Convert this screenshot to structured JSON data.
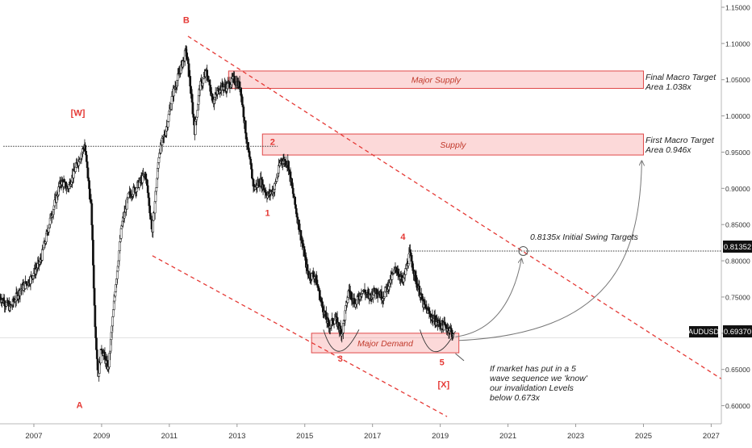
{
  "chart_data": {
    "type": "candlestick",
    "symbol": "AUDUSD",
    "last_price": "0.69370",
    "ylim": [
      0.575,
      1.16
    ],
    "xlim": [
      2006.0,
      2027.3
    ],
    "y_ticks": [
      "1.15000",
      "1.10000",
      "1.05000",
      "1.00000",
      "0.95000",
      "0.90000",
      "0.85000",
      "0.80000",
      "0.75000",
      "0.70000",
      "0.65000",
      "0.60000"
    ],
    "x_ticks": [
      "2007",
      "2009",
      "2011",
      "2013",
      "2015",
      "2017",
      "2019",
      "2021",
      "2023",
      "2025",
      "2027"
    ],
    "price_path": [
      [
        2006.0,
        0.75
      ],
      [
        2006.3,
        0.735
      ],
      [
        2006.6,
        0.76
      ],
      [
        2006.9,
        0.775
      ],
      [
        2007.2,
        0.8
      ],
      [
        2007.5,
        0.86
      ],
      [
        2007.8,
        0.91
      ],
      [
        2008.0,
        0.9
      ],
      [
        2008.25,
        0.93
      ],
      [
        2008.5,
        0.96
      ],
      [
        2008.7,
        0.87
      ],
      [
        2008.8,
        0.72
      ],
      [
        2008.9,
        0.64
      ],
      [
        2009.0,
        0.68
      ],
      [
        2009.2,
        0.65
      ],
      [
        2009.4,
        0.76
      ],
      [
        2009.6,
        0.85
      ],
      [
        2009.8,
        0.89
      ],
      [
        2010.0,
        0.9
      ],
      [
        2010.3,
        0.92
      ],
      [
        2010.5,
        0.84
      ],
      [
        2010.7,
        0.95
      ],
      [
        2010.9,
        0.98
      ],
      [
        2011.1,
        1.03
      ],
      [
        2011.3,
        1.06
      ],
      [
        2011.5,
        1.09
      ],
      [
        2011.6,
        1.05
      ],
      [
        2011.75,
        0.98
      ],
      [
        2011.9,
        1.04
      ],
      [
        2012.1,
        1.06
      ],
      [
        2012.3,
        1.02
      ],
      [
        2012.5,
        1.04
      ],
      [
        2012.7,
        1.04
      ],
      [
        2012.9,
        1.05
      ],
      [
        2013.1,
        1.04
      ],
      [
        2013.3,
        0.96
      ],
      [
        2013.5,
        0.9
      ],
      [
        2013.7,
        0.91
      ],
      [
        2013.9,
        0.89
      ],
      [
        2014.1,
        0.9
      ],
      [
        2014.3,
        0.94
      ],
      [
        2014.5,
        0.935
      ],
      [
        2014.7,
        0.88
      ],
      [
        2014.9,
        0.83
      ],
      [
        2015.1,
        0.78
      ],
      [
        2015.3,
        0.78
      ],
      [
        2015.5,
        0.74
      ],
      [
        2015.7,
        0.71
      ],
      [
        2015.9,
        0.72
      ],
      [
        2016.1,
        0.7
      ],
      [
        2016.3,
        0.76
      ],
      [
        2016.5,
        0.74
      ],
      [
        2016.7,
        0.76
      ],
      [
        2016.9,
        0.75
      ],
      [
        2017.1,
        0.76
      ],
      [
        2017.3,
        0.75
      ],
      [
        2017.5,
        0.77
      ],
      [
        2017.7,
        0.79
      ],
      [
        2017.9,
        0.77
      ],
      [
        2018.1,
        0.81
      ],
      [
        2018.3,
        0.77
      ],
      [
        2018.5,
        0.74
      ],
      [
        2018.7,
        0.725
      ],
      [
        2018.9,
        0.715
      ],
      [
        2019.1,
        0.71
      ],
      [
        2019.3,
        0.705
      ],
      [
        2019.4,
        0.694
      ]
    ],
    "zones": [
      {
        "label": "Major Supply",
        "from": 2012.75,
        "to": 2025.0,
        "low": 1.038,
        "high": 1.062
      },
      {
        "label": "Supply",
        "from": 2013.75,
        "to": 2025.0,
        "low": 0.946,
        "high": 0.975
      },
      {
        "label": "Major Demand",
        "from": 2015.2,
        "to": 2019.55,
        "low": 0.673,
        "high": 0.7
      }
    ],
    "channel_lines": [
      {
        "x1": 2011.55,
        "y1": 1.11,
        "x2": 2027.3,
        "y2": 0.637
      },
      {
        "x1": 2010.5,
        "y1": 0.807,
        "x2": 2019.2,
        "y2": 0.585
      }
    ],
    "reference_lines": [
      {
        "y": 0.958,
        "x1": 2006.1,
        "x2": 2014.2
      },
      {
        "y": 0.8135,
        "x1": 2018.1,
        "x2": 2027.3
      }
    ],
    "wave_labels": [
      {
        "text": "B",
        "x": 2011.5,
        "y": 1.128
      },
      {
        "text": "[W]",
        "x": 2008.3,
        "y": 1.0
      },
      {
        "text": "A",
        "x": 2008.35,
        "y": 0.597
      },
      {
        "text": "1",
        "x": 2013.9,
        "y": 0.862
      },
      {
        "text": "2",
        "x": 2014.05,
        "y": 0.96
      },
      {
        "text": "3",
        "x": 2016.05,
        "y": 0.661
      },
      {
        "text": "4",
        "x": 2017.9,
        "y": 0.829
      },
      {
        "text": "5",
        "x": 2019.05,
        "y": 0.656
      },
      {
        "text": "[X]",
        "x": 2019.1,
        "y": 0.625
      }
    ],
    "annotations": {
      "major_supply_target": [
        "Final Macro Target",
        "Area 1.038x"
      ],
      "supply_target": [
        "First Macro Target",
        "Area 0.946x"
      ],
      "swing_target": "0.8135x Initial Swing Targets",
      "invalidation": [
        "If market has put in a 5",
        "wave sequence we 'know'",
        "our invalidation Levels",
        "below 0.673x"
      ]
    },
    "price_label": "0.81352"
  }
}
